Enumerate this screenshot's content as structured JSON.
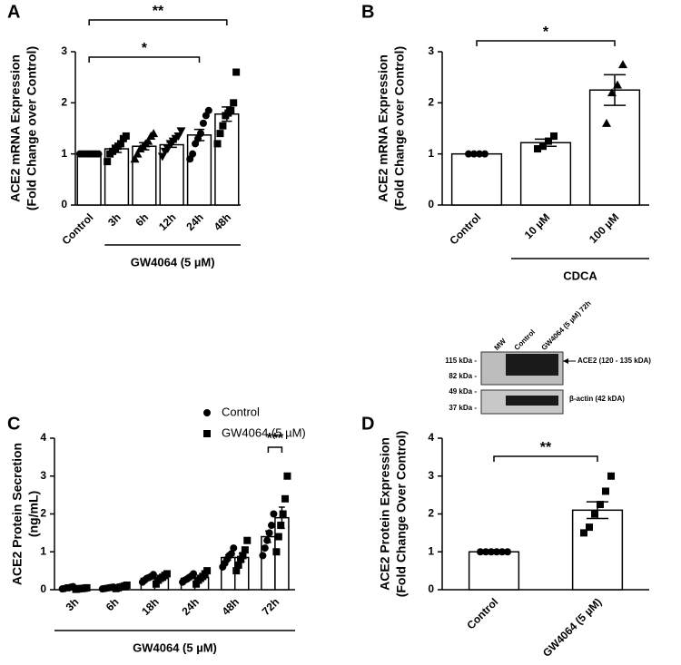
{
  "chart_data": [
    {
      "type": "bar",
      "panel": "A",
      "ylabel": [
        "ACE2 mRNA Expression",
        "(Fold Change over Control)"
      ],
      "categories": [
        "Control",
        "3h",
        "6h",
        "12h",
        "24h",
        "48h"
      ],
      "values": [
        1.0,
        1.1,
        1.15,
        1.18,
        1.37,
        1.78
      ],
      "errors": [
        0,
        0.07,
        0.07,
        0.05,
        0.11,
        0.14
      ],
      "points": [
        [
          1,
          1,
          1,
          1,
          1,
          1,
          1,
          1
        ],
        [
          0.85,
          1.0,
          1.05,
          1.1,
          1.15,
          1.2,
          1.3,
          1.35
        ],
        [
          0.9,
          1.0,
          1.1,
          1.15,
          1.2,
          1.25,
          1.35,
          1.4
        ],
        [
          0.95,
          1.05,
          1.1,
          1.2,
          1.25,
          1.3,
          1.35,
          1.45
        ],
        [
          0.9,
          1.0,
          1.2,
          1.3,
          1.4,
          1.6,
          1.75,
          1.85
        ],
        [
          1.2,
          1.4,
          1.55,
          1.75,
          1.8,
          1.85,
          2.0,
          2.6
        ]
      ],
      "markers": [
        "circle",
        "square",
        "triangle",
        "triangle-down",
        "circle",
        "square"
      ],
      "ylim": [
        0,
        3
      ],
      "yticks": [
        0,
        1,
        2,
        3
      ],
      "color": "#000000",
      "bar_fill": "#ffffff",
      "group": {
        "label": "GW4064 (5 µM)",
        "span": [
          1,
          5
        ]
      },
      "comparisons": [
        {
          "label": "*",
          "pair": [
            0,
            4
          ]
        },
        {
          "label": "**",
          "pair": [
            0,
            5
          ]
        }
      ]
    },
    {
      "type": "bar",
      "panel": "B",
      "ylabel": [
        "ACE2 mRNA Expression",
        "(Fold Change over Control)"
      ],
      "categories": [
        "Control",
        "10 µM",
        "100 µM"
      ],
      "values": [
        1.0,
        1.22,
        2.25
      ],
      "errors": [
        0,
        0.07,
        0.3
      ],
      "points": [
        [
          1,
          1,
          1,
          1
        ],
        [
          1.1,
          1.15,
          1.25,
          1.35
        ],
        [
          1.6,
          2.2,
          2.35,
          2.75
        ]
      ],
      "markers": [
        "circle",
        "square",
        "triangle"
      ],
      "ylim": [
        0,
        3
      ],
      "yticks": [
        0,
        1,
        2,
        3
      ],
      "color": "#000000",
      "bar_fill": "#ffffff",
      "group": {
        "label": "CDCA",
        "span": [
          1,
          2
        ]
      },
      "comparisons": [
        {
          "label": "*",
          "pair": [
            0,
            2
          ]
        }
      ]
    },
    {
      "type": "grouped_bar",
      "panel": "C",
      "ylabel": [
        "ACE2 Protein Secretion",
        "(ng/mL)"
      ],
      "categories": [
        "3h",
        "6h",
        "18h",
        "24h",
        "48h",
        "72h"
      ],
      "series": [
        {
          "name": "Control",
          "marker": "circle",
          "color": "#000000",
          "values": [
            0.05,
            0.05,
            0.3,
            0.3,
            0.85,
            1.4
          ],
          "errors": [
            0.01,
            0.01,
            0.03,
            0.03,
            0.07,
            0.15
          ],
          "points": [
            [
              0.02,
              0.03,
              0.05,
              0.05,
              0.07,
              0.08
            ],
            [
              0.02,
              0.03,
              0.04,
              0.05,
              0.06,
              0.07
            ],
            [
              0.2,
              0.25,
              0.3,
              0.32,
              0.35,
              0.4
            ],
            [
              0.2,
              0.25,
              0.28,
              0.32,
              0.36,
              0.42
            ],
            [
              0.6,
              0.7,
              0.8,
              0.9,
              0.95,
              1.1
            ],
            [
              0.9,
              1.1,
              1.3,
              1.5,
              1.7,
              2.0
            ]
          ]
        },
        {
          "name": "GW4064 (5 µM)",
          "marker": "square",
          "color": "#000000",
          "values": [
            0.03,
            0.07,
            0.3,
            0.32,
            0.85,
            1.9
          ],
          "errors": [
            0.01,
            0.01,
            0.04,
            0.05,
            0.11,
            0.28
          ],
          "points": [
            [
              0.01,
              0.02,
              0.03,
              0.03,
              0.04,
              0.05
            ],
            [
              0.03,
              0.05,
              0.07,
              0.08,
              0.1,
              0.12
            ],
            [
              0.15,
              0.25,
              0.3,
              0.33,
              0.38,
              0.42
            ],
            [
              0.15,
              0.25,
              0.3,
              0.35,
              0.42,
              0.5
            ],
            [
              0.5,
              0.65,
              0.8,
              0.9,
              1.05,
              1.3
            ],
            [
              1.0,
              1.4,
              1.7,
              2.0,
              2.4,
              3.0
            ]
          ]
        }
      ],
      "ylim": [
        0,
        4
      ],
      "yticks": [
        0,
        1,
        2,
        3,
        4
      ],
      "bar_fill": "#ffffff",
      "group": {
        "label": "GW4064 (5 µM)",
        "span": [
          0,
          5
        ]
      },
      "comparisons": [
        {
          "label": "***",
          "pair": [
            5,
            5
          ]
        }
      ]
    },
    {
      "type": "bar",
      "panel": "D",
      "ylabel": [
        "ACE2 Protein Expression",
        "(Fold Change Over Control)"
      ],
      "categories": [
        "Control",
        "GW4064 (5 µM)"
      ],
      "values": [
        1.0,
        2.1
      ],
      "errors": [
        0,
        0.22
      ],
      "points": [
        [
          1,
          1,
          1,
          1,
          1,
          1
        ],
        [
          1.5,
          1.65,
          2.0,
          2.25,
          2.6,
          3.0
        ]
      ],
      "markers": [
        "circle",
        "square"
      ],
      "ylim": [
        0,
        4
      ],
      "yticks": [
        0,
        1,
        2,
        3,
        4
      ],
      "color": "#000000",
      "bar_fill": "#ffffff",
      "comparisons": [
        {
          "label": "**",
          "pair": [
            0,
            1
          ]
        }
      ],
      "inset": {
        "lanes": [
          "MW",
          "Control",
          "GW4064 (5 µM) 72h"
        ],
        "mw_markers": [
          "115 kDa -",
          "82 kDa -",
          "49 kDa -",
          "37 kDa -"
        ],
        "bands": [
          "ACE2 (120 - 135 kDA)",
          "β-actin (42 kDA)"
        ]
      }
    }
  ]
}
